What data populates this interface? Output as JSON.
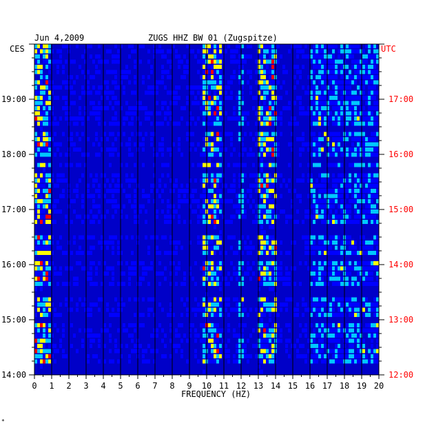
{
  "header": {
    "date": "Jun 4,2009",
    "station": "ZUGS HHZ BW 01 (Zugspitze)",
    "left_zone": "CES",
    "right_zone": "UTC",
    "corner_mark": "*"
  },
  "colors": {
    "background": "#0000c8",
    "low": "#0000ff",
    "mid": "#00c8ff",
    "high": "#ffff00",
    "peak": "#ff0000",
    "grid": "#000000",
    "utc_text": "#ff0000"
  },
  "chart_data": {
    "type": "heatmap",
    "title": "ZUGS HHZ BW 01 (Zugspitze)",
    "subtitle": "Jun 4,2009",
    "xlabel": "FREQUENCY (HZ)",
    "ylabel_left": "CES",
    "ylabel_right": "UTC",
    "xlim": [
      0,
      20
    ],
    "x_ticks": [
      "0",
      "1",
      "2",
      "3",
      "4",
      "5",
      "6",
      "7",
      "8",
      "9",
      "10",
      "11",
      "12",
      "13",
      "14",
      "15",
      "16",
      "17",
      "18",
      "19",
      "20"
    ],
    "y_range_hours_ces": [
      14.0,
      20.0
    ],
    "left_ticks": [
      {
        "label": "19:00",
        "hour": 19
      },
      {
        "label": "18:00",
        "hour": 18
      },
      {
        "label": "17:00",
        "hour": 17
      },
      {
        "label": "16:00",
        "hour": 16
      },
      {
        "label": "15:00",
        "hour": 15
      },
      {
        "label": "14:00",
        "hour": 14
      }
    ],
    "right_ticks": [
      {
        "label": "17:00",
        "hour": 19
      },
      {
        "label": "16:00",
        "hour": 18
      },
      {
        "label": "15:00",
        "hour": 17
      },
      {
        "label": "14:00",
        "hour": 16
      },
      {
        "label": "13:00",
        "hour": 15
      },
      {
        "label": "12:00",
        "hour": 14
      }
    ],
    "energy_bands_hz": [
      {
        "range": [
          0,
          1
        ],
        "level": "high"
      },
      {
        "range": [
          9.8,
          10.8
        ],
        "level": "high"
      },
      {
        "range": [
          11.8,
          12.2
        ],
        "level": "medium"
      },
      {
        "range": [
          13,
          14
        ],
        "level": "high"
      },
      {
        "range": [
          16,
          20
        ],
        "level": "medium"
      }
    ],
    "grid": true
  }
}
